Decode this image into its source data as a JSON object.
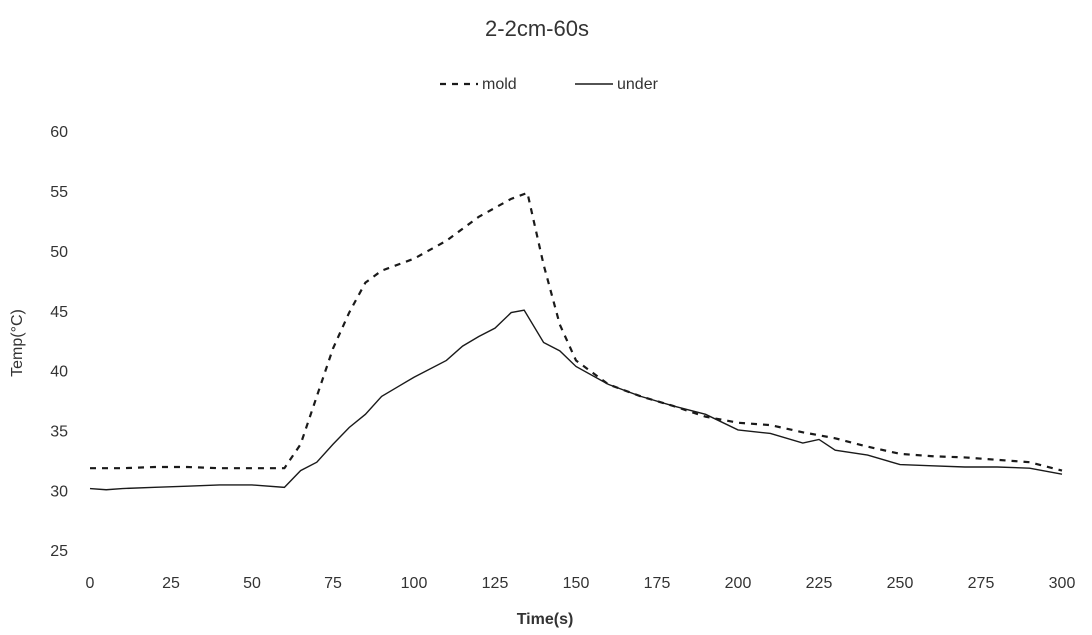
{
  "chart_data": {
    "type": "line",
    "title": "2-2cm-60s",
    "x_label": "Time(s)",
    "y_label": "Temp(°C)",
    "series": [
      {
        "name": "mold",
        "color": "#1a1a1a",
        "dash": true,
        "x": [
          0,
          10,
          20,
          30,
          40,
          50,
          60,
          65,
          70,
          75,
          80,
          85,
          90,
          100,
          110,
          120,
          130,
          135,
          140,
          145,
          150,
          160,
          170,
          180,
          190,
          200,
          210,
          220,
          230,
          240,
          250,
          260,
          270,
          280,
          290,
          300
        ],
        "values": [
          32,
          32,
          32.1,
          32.1,
          32,
          32,
          32,
          34,
          38,
          42,
          45,
          47.5,
          48.5,
          49.5,
          51,
          53,
          54.5,
          55,
          49,
          44,
          41,
          39,
          38,
          37.2,
          36.3,
          35.8,
          35.6,
          35,
          34.5,
          33.8,
          33.2,
          33,
          32.9,
          32.7,
          32.5,
          31.8
        ]
      },
      {
        "name": "under",
        "color": "#1a1a1a",
        "dash": false,
        "x": [
          0,
          5,
          10,
          20,
          30,
          40,
          50,
          60,
          65,
          70,
          75,
          80,
          85,
          90,
          95,
          100,
          110,
          115,
          120,
          125,
          130,
          134,
          140,
          145,
          150,
          160,
          170,
          180,
          190,
          200,
          210,
          220,
          225,
          230,
          240,
          250,
          260,
          270,
          280,
          290,
          300
        ],
        "values": [
          30.3,
          30.2,
          30.3,
          30.4,
          30.5,
          30.6,
          30.6,
          30.4,
          31.8,
          32.5,
          34,
          35.4,
          36.5,
          38,
          38.8,
          39.6,
          41,
          42.2,
          43,
          43.7,
          45,
          45.2,
          42.5,
          41.8,
          40.5,
          39,
          38,
          37.2,
          36.5,
          35.2,
          34.9,
          34.1,
          34.4,
          33.5,
          33.1,
          32.3,
          32.2,
          32.1,
          32.1,
          32,
          31.5
        ]
      }
    ],
    "xlim": [
      0,
      300
    ],
    "xticks": [
      0,
      25,
      50,
      75,
      100,
      125,
      150,
      175,
      200,
      225,
      250,
      275,
      300
    ],
    "ylim": [
      25,
      60
    ],
    "yticks": [
      25,
      30,
      35,
      40,
      45,
      50,
      55,
      60
    ],
    "grid": false
  }
}
